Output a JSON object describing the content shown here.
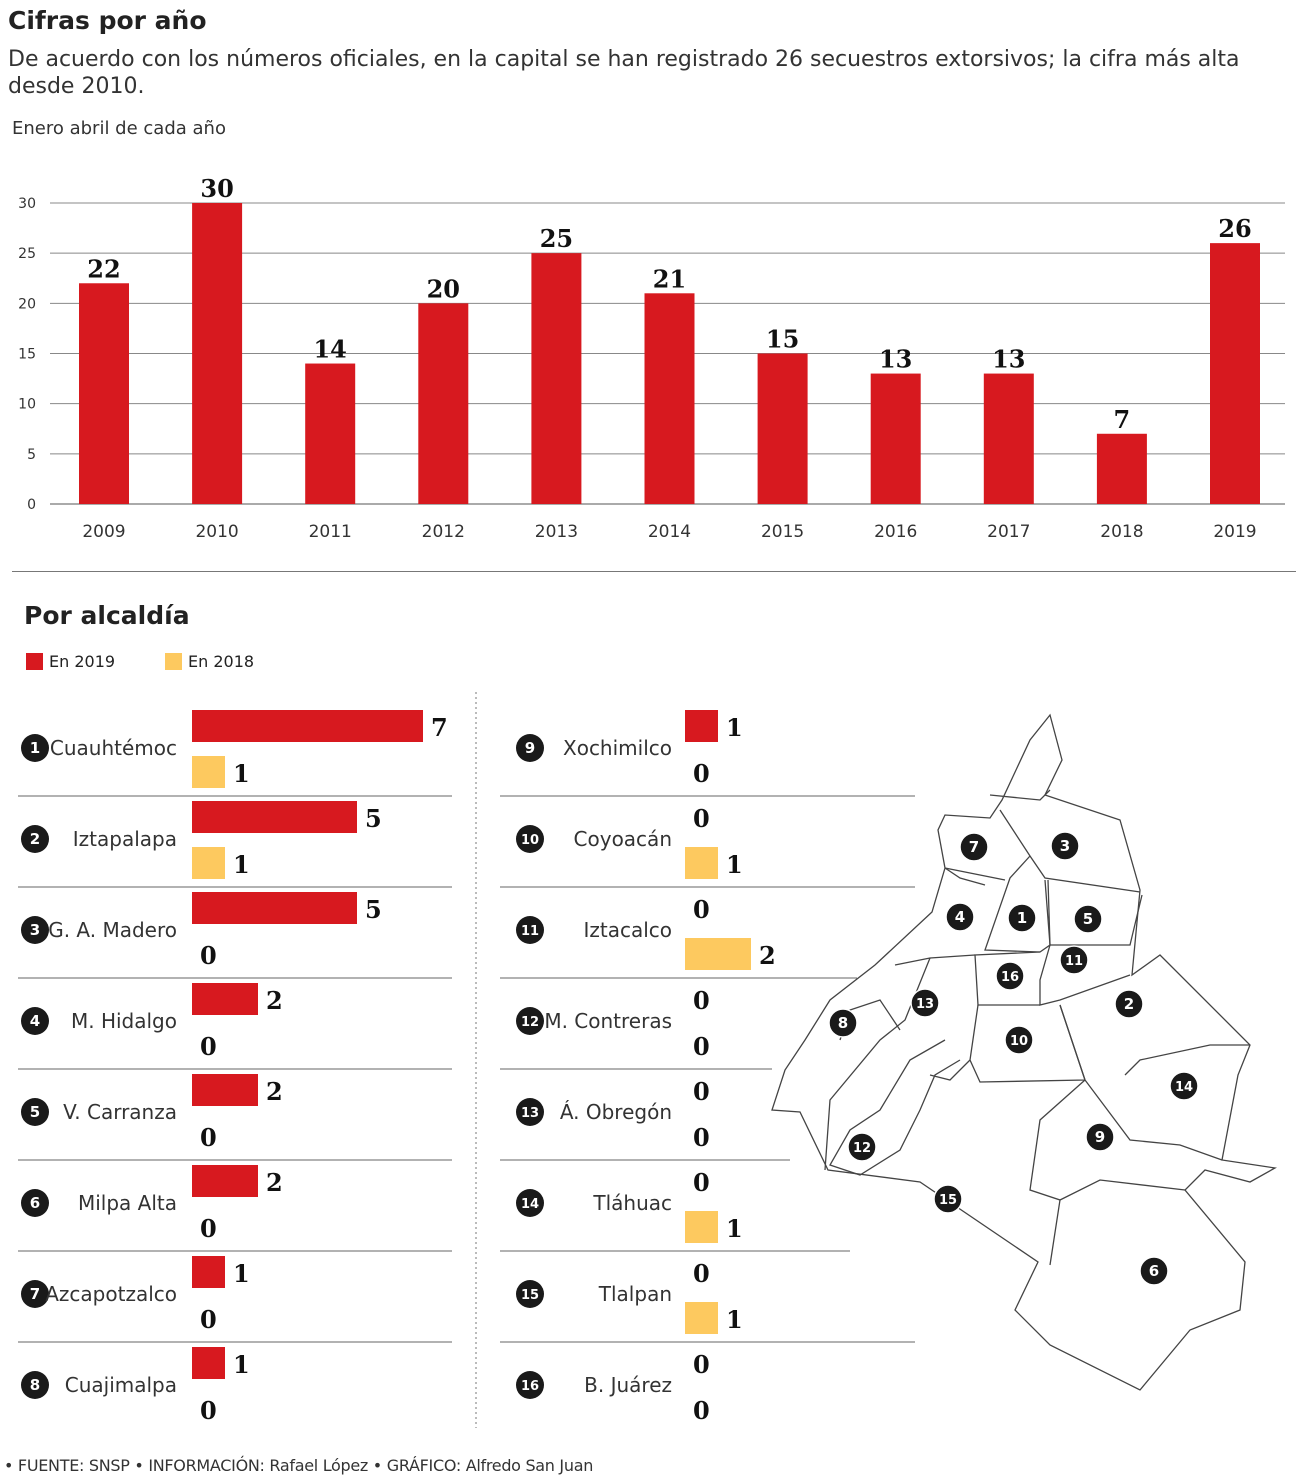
{
  "header": {
    "title": "Cifras por año",
    "subtitle": "De acuerdo con los números oficiales, en la capital se han registrado 26 secuestros extorsivos; la cifra más alta desde 2010.",
    "note": "Enero abril de cada año"
  },
  "section2": {
    "title": "Por alcaldía"
  },
  "footer": "• FUENTE: SNSP • INFORMACIÓN: Rafael López  • GRÁFICO: Alfredo San Juan",
  "colors": {
    "red": "#d7191f",
    "yellow": "#fdc95f"
  },
  "chart_data": [
    {
      "type": "bar",
      "title": "Cifras por año",
      "xlabel": "",
      "ylabel": "",
      "ylim": [
        0,
        30
      ],
      "yticks": [
        0,
        5,
        10,
        15,
        20,
        25,
        30
      ],
      "grid": true,
      "categories": [
        "2009",
        "2010",
        "2011",
        "2012",
        "2013",
        "2014",
        "2015",
        "2016",
        "2017",
        "2018",
        "2019"
      ],
      "values": [
        22,
        30,
        14,
        20,
        25,
        21,
        15,
        13,
        13,
        7,
        26
      ]
    },
    {
      "type": "bar",
      "orientation": "horizontal",
      "title": "Por alcaldía",
      "legend": [
        "En 2019",
        "En 2018"
      ],
      "categories": [
        "Cuauhtémoc",
        "Iztapalapa",
        "G. A. Madero",
        "M. Hidalgo",
        "V. Carranza",
        "Milpa Alta",
        "Azcapotzalco",
        "Cuajimalpa",
        "Xochimilco",
        "Coyoacán",
        "Iztacalco",
        "M. Contreras",
        "Á. Obregón",
        "Tláhuac",
        "Tlalpan",
        "B. Juárez"
      ],
      "ids": [
        "1",
        "2",
        "3",
        "4",
        "5",
        "6",
        "7",
        "8",
        "9",
        "10",
        "11",
        "12",
        "13",
        "14",
        "15",
        "16"
      ],
      "series": [
        {
          "name": "En 2019",
          "values": [
            7,
            5,
            5,
            2,
            2,
            2,
            1,
            1,
            1,
            0,
            0,
            0,
            0,
            0,
            0,
            0
          ]
        },
        {
          "name": "En 2018",
          "values": [
            1,
            1,
            0,
            0,
            0,
            0,
            0,
            0,
            0,
            1,
            2,
            0,
            0,
            1,
            1,
            0
          ]
        }
      ]
    }
  ]
}
